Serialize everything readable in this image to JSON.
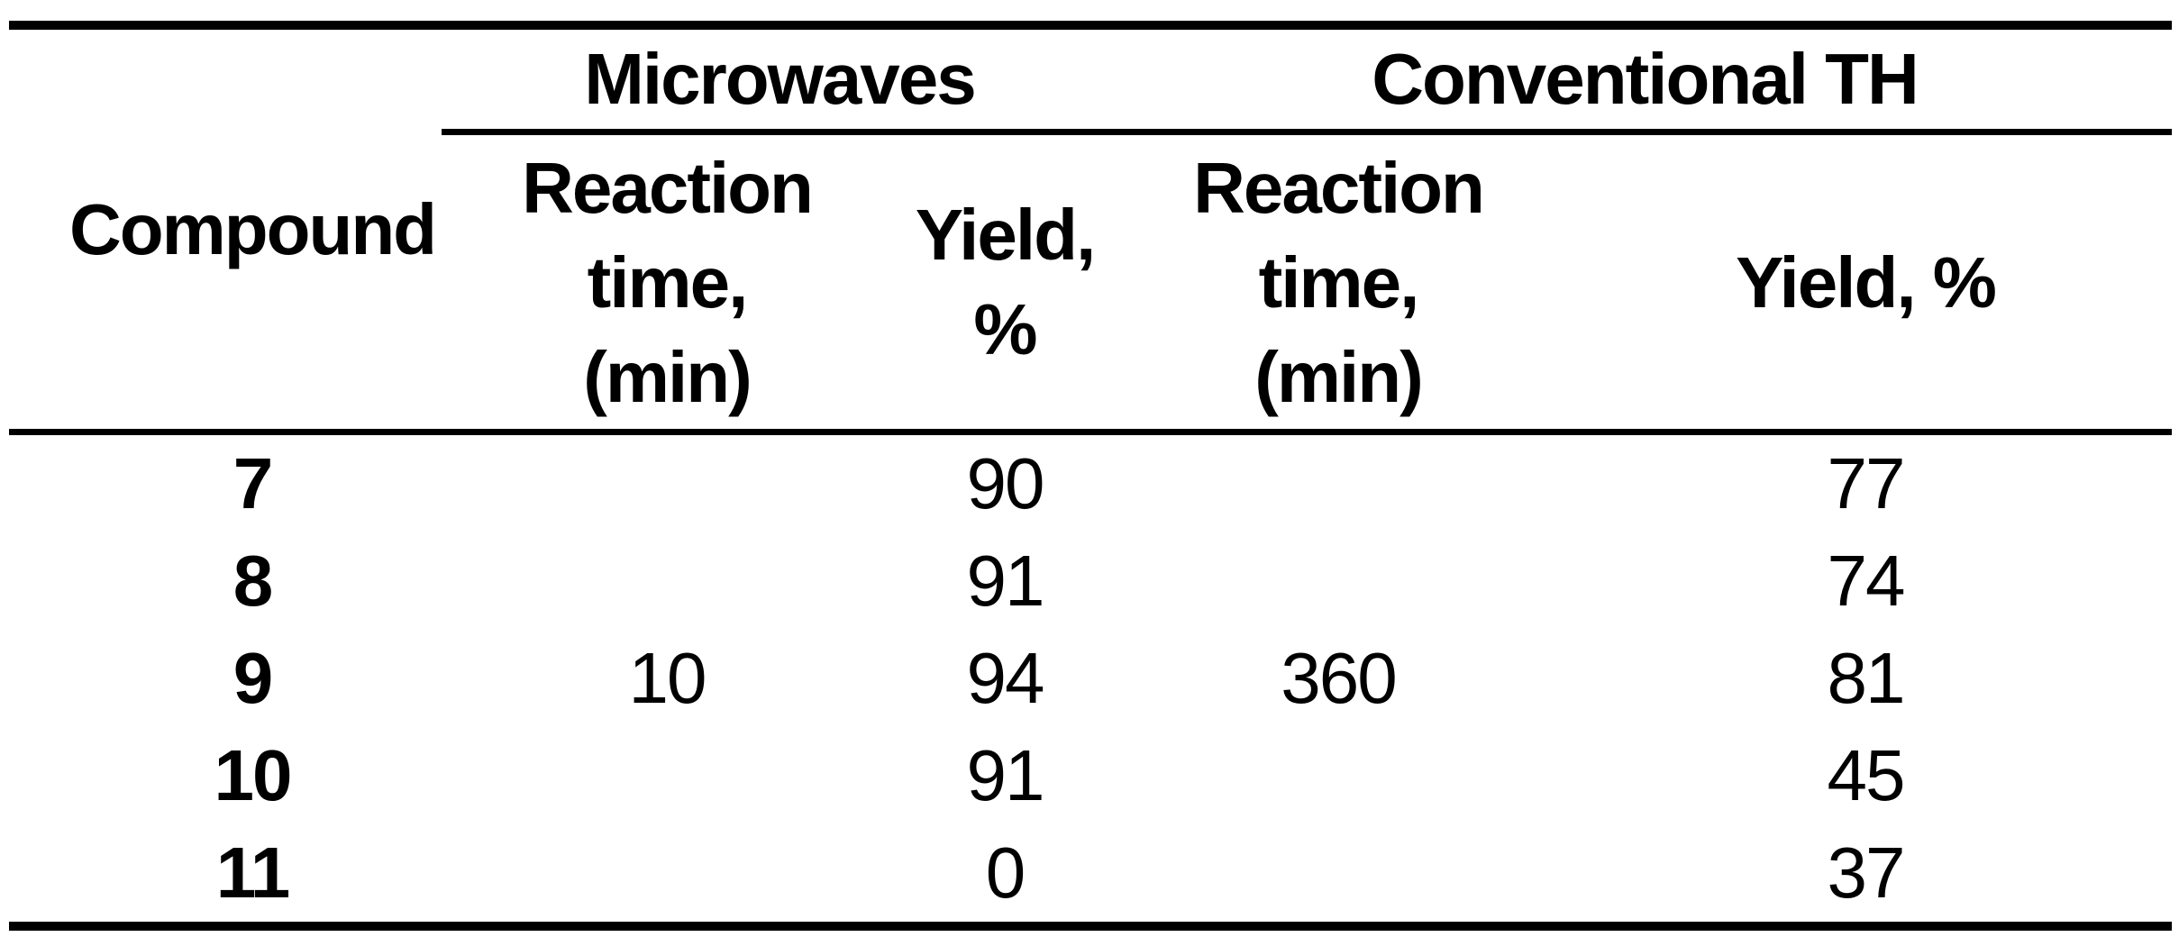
{
  "colors": {
    "text": "#000000",
    "background": "#ffffff"
  },
  "table": {
    "groups": [
      {
        "label": "Microwaves"
      },
      {
        "label": "Conventional TH"
      }
    ],
    "headers": {
      "compound": "Compound",
      "mw_time": "Reaction\ntime,\n(min)",
      "mw_yield": "Yield,\n%",
      "conv_time": "Reaction\ntime,\n(min)",
      "conv_yield": "Yield, %"
    },
    "shared": {
      "mw_time": "10",
      "conv_time": "360"
    },
    "rows": [
      {
        "compound": "7",
        "mw_yield": "90",
        "conv_yield": "77"
      },
      {
        "compound": "8",
        "mw_yield": "91",
        "conv_yield": "74"
      },
      {
        "compound": "9",
        "mw_yield": "94",
        "conv_yield": "81"
      },
      {
        "compound": "10",
        "mw_yield": "91",
        "conv_yield": "45"
      },
      {
        "compound": "11",
        "mw_yield": "0",
        "conv_yield": "37"
      }
    ]
  },
  "chart_data": {
    "type": "table",
    "column_groups": [
      "",
      "Microwaves",
      "Microwaves",
      "Conventional TH",
      "Conventional TH"
    ],
    "columns": [
      "Compound",
      "Reaction time, (min)",
      "Yield, %",
      "Reaction time, (min)",
      "Yield, %"
    ],
    "rows": [
      [
        "7",
        "",
        "90",
        "",
        "77"
      ],
      [
        "8",
        "",
        "91",
        "",
        "74"
      ],
      [
        "9",
        "10",
        "94",
        "360",
        "81"
      ],
      [
        "10",
        "",
        "91",
        "",
        "45"
      ],
      [
        "11",
        "",
        "0",
        "",
        "37"
      ]
    ]
  }
}
